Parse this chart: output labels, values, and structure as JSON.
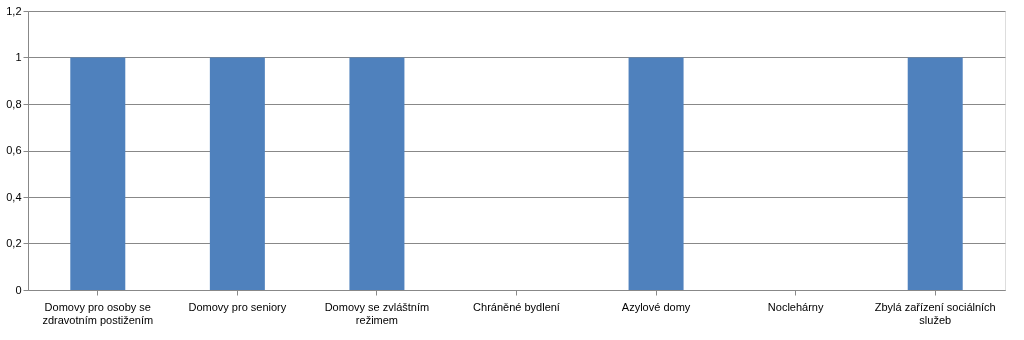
{
  "chart_data": {
    "type": "bar",
    "categories": [
      "Domovy pro osoby se zdravotním postižením",
      "Domovy pro seniory",
      "Domovy se zvláštním režimem",
      "Chráněné bydlení",
      "Azylové domy",
      "Noclehárny",
      "Zbylá zařízení sociálních služeb"
    ],
    "values": [
      1,
      1,
      1,
      0,
      1,
      0,
      1
    ],
    "color": "#4f81bd",
    "ylim": [
      0,
      1.2
    ],
    "yticks": [
      0,
      {
        "value": 0.2,
        "label": "0,2"
      },
      {
        "value": 0.4,
        "label": "0,4"
      },
      {
        "value": 0.6,
        "label": "0,6"
      },
      {
        "value": 0.8,
        "label": "0,8"
      },
      1,
      {
        "value": 1.2,
        "label": "1,2"
      }
    ],
    "grid": "y"
  }
}
